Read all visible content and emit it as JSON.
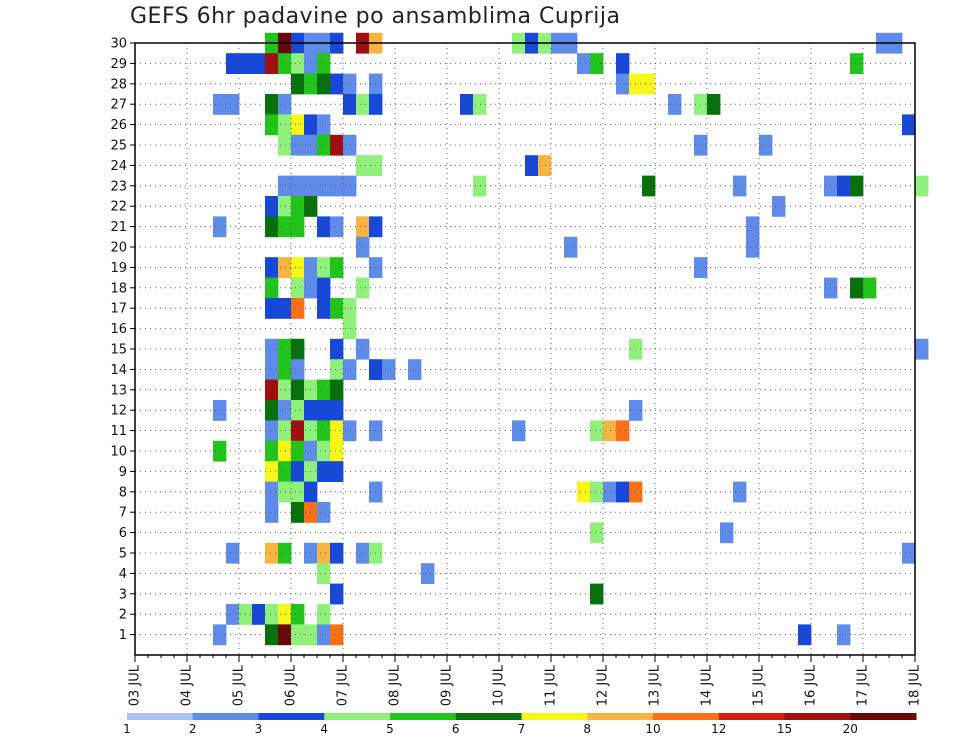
{
  "chart_data": {
    "type": "heatmap",
    "title": "GEFS 6hr padavine po ansamblima Cuprija",
    "x_tick_labels": [
      "03 JUL",
      "04 JUL",
      "05 JUL",
      "06 JUL",
      "07 JUL",
      "08 JUL",
      "09 JUL",
      "10 JUL",
      "11 JUL",
      "12 JUL",
      "13 JUL",
      "14 JUL",
      "15 JUL",
      "16 JUL",
      "17 JUL",
      "18 JUL"
    ],
    "y_tick_labels": [
      "1",
      "2",
      "3",
      "4",
      "5",
      "6",
      "7",
      "8",
      "9",
      "10",
      "11",
      "12",
      "13",
      "14",
      "15",
      "16",
      "17",
      "18",
      "19",
      "20",
      "21",
      "22",
      "23",
      "24",
      "25",
      "26",
      "27",
      "28",
      "29",
      "30"
    ],
    "x_range_days": [
      0,
      15
    ],
    "y_range": [
      0,
      30
    ],
    "grid": true,
    "legend_levels": [
      "1",
      "2",
      "3",
      "4",
      "5",
      "6",
      "7",
      "8",
      "10",
      "12",
      "15",
      "20"
    ],
    "legend_colors": [
      "#a9c3f2",
      "#5e8ce8",
      "#1848d8",
      "#8ff07c",
      "#22c41c",
      "#08700c",
      "#f8f818",
      "#f8b442",
      "#f87018",
      "#d02008",
      "#a01010",
      "#6a0808"
    ],
    "cells": [
      [
        2.5,
        30,
        4
      ],
      [
        2.75,
        30,
        11
      ],
      [
        3.0,
        30,
        2
      ],
      [
        3.25,
        30,
        1
      ],
      [
        3.5,
        30,
        1
      ],
      [
        3.75,
        30,
        2
      ],
      [
        4.25,
        30,
        10
      ],
      [
        4.5,
        30,
        7
      ],
      [
        7.25,
        30,
        3
      ],
      [
        7.5,
        30,
        2
      ],
      [
        7.75,
        30,
        3
      ],
      [
        8.0,
        30,
        1
      ],
      [
        8.25,
        30,
        1
      ],
      [
        14.25,
        30,
        1
      ],
      [
        14.5,
        30,
        1
      ],
      [
        1.75,
        29,
        2
      ],
      [
        2.0,
        29,
        2
      ],
      [
        2.25,
        29,
        2
      ],
      [
        2.5,
        29,
        10
      ],
      [
        2.75,
        29,
        4
      ],
      [
        3.0,
        29,
        3
      ],
      [
        3.25,
        29,
        1
      ],
      [
        3.5,
        29,
        4
      ],
      [
        8.5,
        29,
        1
      ],
      [
        8.75,
        29,
        4
      ],
      [
        9.25,
        29,
        2
      ],
      [
        13.75,
        29,
        4
      ],
      [
        3.0,
        28,
        5
      ],
      [
        3.25,
        28,
        4
      ],
      [
        3.5,
        28,
        5
      ],
      [
        3.75,
        28,
        2
      ],
      [
        4.0,
        28,
        1
      ],
      [
        4.5,
        28,
        1
      ],
      [
        9.25,
        28,
        1
      ],
      [
        9.5,
        28,
        6
      ],
      [
        9.75,
        28,
        6
      ],
      [
        1.5,
        27,
        1
      ],
      [
        1.75,
        27,
        1
      ],
      [
        2.5,
        27,
        5
      ],
      [
        2.75,
        27,
        1
      ],
      [
        4.0,
        27,
        2
      ],
      [
        4.25,
        27,
        3
      ],
      [
        4.5,
        27,
        2
      ],
      [
        6.25,
        27,
        2
      ],
      [
        6.5,
        27,
        3
      ],
      [
        10.25,
        27,
        1
      ],
      [
        10.75,
        27,
        3
      ],
      [
        11.0,
        27,
        5
      ],
      [
        2.5,
        26,
        4
      ],
      [
        2.75,
        26,
        3
      ],
      [
        3.0,
        26,
        6
      ],
      [
        3.25,
        26,
        2
      ],
      [
        3.5,
        26,
        1
      ],
      [
        14.75,
        26,
        2
      ],
      [
        2.75,
        25,
        3
      ],
      [
        3.0,
        25,
        1
      ],
      [
        3.25,
        25,
        1
      ],
      [
        3.5,
        25,
        4
      ],
      [
        3.75,
        25,
        10
      ],
      [
        4.0,
        25,
        1
      ],
      [
        10.75,
        25,
        1
      ],
      [
        12.0,
        25,
        1
      ],
      [
        4.25,
        24,
        3
      ],
      [
        4.5,
        24,
        3
      ],
      [
        7.5,
        24,
        2
      ],
      [
        7.75,
        24,
        7
      ],
      [
        2.75,
        23,
        1
      ],
      [
        3.0,
        23,
        1
      ],
      [
        3.25,
        23,
        1
      ],
      [
        3.5,
        23,
        1
      ],
      [
        3.75,
        23,
        1
      ],
      [
        4.0,
        23,
        1
      ],
      [
        6.5,
        23,
        3
      ],
      [
        9.75,
        23,
        5
      ],
      [
        11.5,
        23,
        1
      ],
      [
        13.25,
        23,
        1
      ],
      [
        13.5,
        23,
        2
      ],
      [
        13.75,
        23,
        5
      ],
      [
        15.0,
        23,
        3
      ],
      [
        2.5,
        22,
        2
      ],
      [
        2.75,
        22,
        3
      ],
      [
        3.0,
        22,
        4
      ],
      [
        3.25,
        22,
        5
      ],
      [
        12.25,
        22,
        1
      ],
      [
        1.5,
        21,
        1
      ],
      [
        2.5,
        21,
        5
      ],
      [
        2.75,
        21,
        4
      ],
      [
        3.0,
        21,
        4
      ],
      [
        3.5,
        21,
        2
      ],
      [
        3.75,
        21,
        1
      ],
      [
        4.25,
        21,
        7
      ],
      [
        4.5,
        21,
        2
      ],
      [
        11.75,
        21,
        1
      ],
      [
        4.25,
        20,
        1
      ],
      [
        8.25,
        20,
        1
      ],
      [
        11.75,
        20,
        1
      ],
      [
        2.5,
        19,
        2
      ],
      [
        2.75,
        19,
        7
      ],
      [
        3.0,
        19,
        6
      ],
      [
        3.25,
        19,
        1
      ],
      [
        3.5,
        19,
        3
      ],
      [
        3.75,
        19,
        4
      ],
      [
        4.5,
        19,
        1
      ],
      [
        10.75,
        19,
        1
      ],
      [
        2.5,
        18,
        4
      ],
      [
        3.0,
        18,
        3
      ],
      [
        3.25,
        18,
        1
      ],
      [
        3.5,
        18,
        2
      ],
      [
        4.25,
        18,
        3
      ],
      [
        13.25,
        18,
        1
      ],
      [
        13.75,
        18,
        5
      ],
      [
        14.0,
        18,
        4
      ],
      [
        2.5,
        17,
        2
      ],
      [
        2.75,
        17,
        2
      ],
      [
        3.0,
        17,
        8
      ],
      [
        3.5,
        17,
        2
      ],
      [
        3.75,
        17,
        4
      ],
      [
        4.0,
        17,
        3
      ],
      [
        4.0,
        16,
        3
      ],
      [
        2.5,
        15,
        1
      ],
      [
        2.75,
        15,
        4
      ],
      [
        3.0,
        15,
        5
      ],
      [
        3.75,
        15,
        2
      ],
      [
        4.25,
        15,
        1
      ],
      [
        9.5,
        15,
        3
      ],
      [
        15.0,
        15,
        1
      ],
      [
        2.5,
        14,
        1
      ],
      [
        2.75,
        14,
        4
      ],
      [
        3.0,
        14,
        1
      ],
      [
        3.75,
        14,
        3
      ],
      [
        4.0,
        14,
        1
      ],
      [
        4.5,
        14,
        2
      ],
      [
        4.75,
        14,
        1
      ],
      [
        5.25,
        14,
        1
      ],
      [
        2.5,
        13,
        10
      ],
      [
        2.75,
        13,
        3
      ],
      [
        3.0,
        13,
        5
      ],
      [
        3.25,
        13,
        3
      ],
      [
        3.5,
        13,
        4
      ],
      [
        3.75,
        13,
        5
      ],
      [
        2.5,
        12,
        5
      ],
      [
        2.75,
        12,
        1
      ],
      [
        3.0,
        12,
        3
      ],
      [
        3.25,
        12,
        2
      ],
      [
        3.5,
        12,
        2
      ],
      [
        3.75,
        12,
        2
      ],
      [
        1.5,
        12,
        1
      ],
      [
        9.5,
        12,
        1
      ],
      [
        2.5,
        11,
        1
      ],
      [
        2.75,
        11,
        3
      ],
      [
        3.0,
        11,
        10
      ],
      [
        3.25,
        11,
        3
      ],
      [
        3.5,
        11,
        4
      ],
      [
        3.75,
        11,
        6
      ],
      [
        4.0,
        11,
        1
      ],
      [
        4.5,
        11,
        1
      ],
      [
        7.25,
        11,
        1
      ],
      [
        8.75,
        11,
        3
      ],
      [
        9.0,
        11,
        7
      ],
      [
        9.25,
        11,
        8
      ],
      [
        1.5,
        10,
        4
      ],
      [
        2.5,
        10,
        4
      ],
      [
        2.75,
        10,
        6
      ],
      [
        3.0,
        10,
        4
      ],
      [
        3.25,
        10,
        1
      ],
      [
        3.5,
        10,
        3
      ],
      [
        3.75,
        10,
        6
      ],
      [
        2.5,
        9,
        6
      ],
      [
        2.75,
        9,
        4
      ],
      [
        3.0,
        9,
        2
      ],
      [
        3.25,
        9,
        3
      ],
      [
        3.5,
        9,
        2
      ],
      [
        3.75,
        9,
        2
      ],
      [
        2.5,
        8,
        1
      ],
      [
        2.75,
        8,
        3
      ],
      [
        3.0,
        8,
        3
      ],
      [
        3.25,
        8,
        2
      ],
      [
        4.5,
        8,
        1
      ],
      [
        8.5,
        8,
        6
      ],
      [
        8.75,
        8,
        3
      ],
      [
        9.0,
        8,
        1
      ],
      [
        9.25,
        8,
        2
      ],
      [
        9.5,
        8,
        8
      ],
      [
        11.5,
        8,
        1
      ],
      [
        2.5,
        7,
        1
      ],
      [
        3.0,
        7,
        5
      ],
      [
        3.25,
        7,
        8
      ],
      [
        3.5,
        7,
        1
      ],
      [
        8.75,
        6,
        3
      ],
      [
        11.25,
        6,
        1
      ],
      [
        1.75,
        5,
        1
      ],
      [
        2.5,
        5,
        7
      ],
      [
        2.75,
        5,
        4
      ],
      [
        3.25,
        5,
        1
      ],
      [
        3.5,
        5,
        7
      ],
      [
        3.75,
        5,
        2
      ],
      [
        4.25,
        5,
        1
      ],
      [
        4.5,
        5,
        3
      ],
      [
        14.75,
        5,
        1
      ],
      [
        3.5,
        4,
        3
      ],
      [
        5.5,
        4,
        1
      ],
      [
        3.75,
        3,
        2
      ],
      [
        8.75,
        3,
        5
      ],
      [
        1.75,
        2,
        1
      ],
      [
        2.0,
        2,
        3
      ],
      [
        2.25,
        2,
        2
      ],
      [
        2.5,
        2,
        3
      ],
      [
        2.75,
        2,
        6
      ],
      [
        3.0,
        2,
        4
      ],
      [
        3.5,
        2,
        3
      ],
      [
        1.5,
        1,
        1
      ],
      [
        2.5,
        1,
        5
      ],
      [
        2.75,
        1,
        11
      ],
      [
        3.0,
        1,
        3
      ],
      [
        3.25,
        1,
        3
      ],
      [
        3.5,
        1,
        1
      ],
      [
        3.75,
        1,
        8
      ],
      [
        12.75,
        1,
        2
      ],
      [
        13.5,
        1,
        1
      ]
    ]
  }
}
